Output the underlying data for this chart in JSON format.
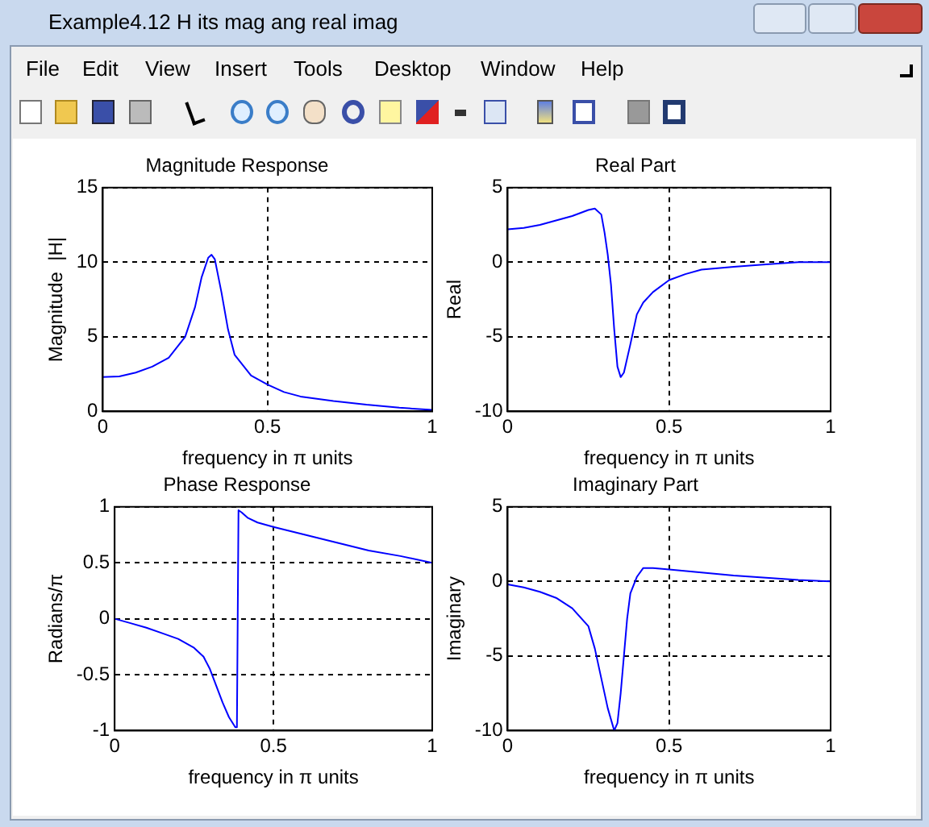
{
  "chart_data": [
    {
      "type": "other",
      "title": "Example4.12 H its mag ang real imag",
      "annotations": [
        "File",
        "Edit",
        "View",
        "Insert",
        "Tools",
        "Desktop",
        "Window",
        "Help"
      ]
    },
    {
      "type": "line",
      "title": "Magnitude Response",
      "xlabel": "frequency in π units",
      "ylabel": "Magnitude  |H|",
      "color": "#0000ff",
      "xlim": [
        0,
        1
      ],
      "ylim": [
        0,
        15
      ],
      "xticks": [
        0,
        0.5,
        1
      ],
      "yticks": [
        0,
        5,
        10,
        15
      ],
      "grid": true,
      "x": [
        0,
        0.05,
        0.1,
        0.15,
        0.2,
        0.25,
        0.28,
        0.3,
        0.32,
        0.33,
        0.34,
        0.36,
        0.38,
        0.4,
        0.45,
        0.5,
        0.55,
        0.6,
        0.7,
        0.8,
        0.9,
        1
      ],
      "values": [
        2.3,
        2.35,
        2.6,
        3.0,
        3.6,
        5.0,
        7,
        9,
        10.3,
        10.5,
        10.2,
        8,
        5.5,
        3.8,
        2.4,
        1.8,
        1.3,
        1.0,
        0.7,
        0.45,
        0.25,
        0.1
      ]
    },
    {
      "type": "line",
      "title": "Real Part",
      "xlabel": "frequency in π units",
      "ylabel": "Real",
      "color": "#0000ff",
      "xlim": [
        0,
        1
      ],
      "ylim": [
        -10,
        5
      ],
      "xticks": [
        0,
        0.5,
        1
      ],
      "yticks": [
        -10,
        -5,
        0,
        5
      ],
      "grid": true,
      "x": [
        0,
        0.05,
        0.1,
        0.15,
        0.2,
        0.25,
        0.27,
        0.29,
        0.3,
        0.31,
        0.32,
        0.33,
        0.34,
        0.35,
        0.36,
        0.38,
        0.4,
        0.42,
        0.45,
        0.5,
        0.55,
        0.6,
        0.7,
        0.8,
        0.9,
        1
      ],
      "values": [
        2.2,
        2.3,
        2.5,
        2.8,
        3.1,
        3.5,
        3.6,
        3.2,
        2,
        0.5,
        -1.5,
        -4.5,
        -7,
        -7.7,
        -7.4,
        -5.5,
        -3.5,
        -2.7,
        -2,
        -1.2,
        -0.8,
        -0.5,
        -0.3,
        -0.15,
        0,
        0
      ]
    },
    {
      "type": "line",
      "title": "Phase Response",
      "xlabel": "frequency in π units",
      "ylabel": "Radians/π",
      "color": "#0000ff",
      "xlim": [
        0,
        1
      ],
      "ylim": [
        -1,
        1
      ],
      "xticks": [
        0,
        0.5,
        1
      ],
      "yticks": [
        -1,
        -0.5,
        0,
        0.5,
        1
      ],
      "grid": true,
      "x": [
        0,
        0.05,
        0.1,
        0.15,
        0.2,
        0.25,
        0.28,
        0.3,
        0.32,
        0.34,
        0.36,
        0.38,
        0.385,
        0.39,
        0.4,
        0.42,
        0.45,
        0.5,
        0.6,
        0.7,
        0.8,
        0.9,
        1
      ],
      "values": [
        0,
        -0.04,
        -0.08,
        -0.13,
        -0.18,
        -0.26,
        -0.34,
        -0.45,
        -0.6,
        -0.75,
        -0.88,
        -0.97,
        -0.97,
        0.97,
        0.95,
        0.9,
        0.86,
        0.82,
        0.75,
        0.68,
        0.61,
        0.56,
        0.5
      ]
    },
    {
      "type": "line",
      "title": "Imaginary Part",
      "xlabel": "frequency in π units",
      "ylabel": "Imaginary",
      "color": "#0000ff",
      "xlim": [
        0,
        1
      ],
      "ylim": [
        -10,
        5
      ],
      "xticks": [
        0,
        0.5,
        1
      ],
      "yticks": [
        -10,
        -5,
        0,
        5
      ],
      "grid": true,
      "x": [
        0,
        0.05,
        0.1,
        0.15,
        0.2,
        0.25,
        0.27,
        0.29,
        0.31,
        0.33,
        0.34,
        0.35,
        0.36,
        0.37,
        0.38,
        0.4,
        0.42,
        0.45,
        0.5,
        0.6,
        0.7,
        0.8,
        0.9,
        1
      ],
      "values": [
        -0.2,
        -0.4,
        -0.7,
        -1.1,
        -1.8,
        -3,
        -4.5,
        -6.5,
        -8.5,
        -10,
        -9.5,
        -7.5,
        -5,
        -2.5,
        -0.8,
        0.3,
        0.9,
        0.9,
        0.8,
        0.6,
        0.4,
        0.25,
        0.1,
        0
      ]
    }
  ]
}
